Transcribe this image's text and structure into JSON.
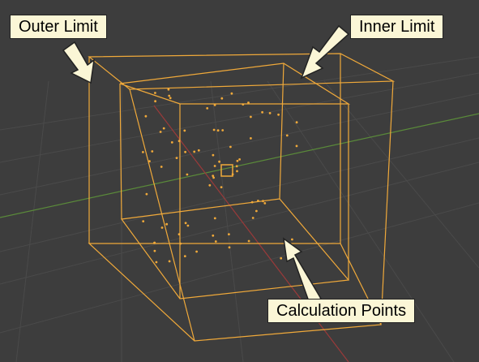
{
  "labels": {
    "outer_limit": "Outer Limit",
    "inner_limit": "Inner Limit",
    "calculation_points": "Calculation Points"
  }
}
